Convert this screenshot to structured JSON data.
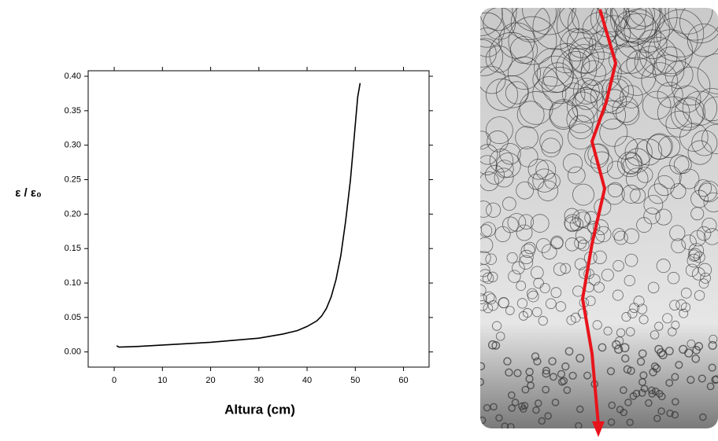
{
  "chart_data": {
    "type": "line",
    "x_label": "Altura (cm)",
    "y_label": "ε / ε₀",
    "x": [
      0.5,
      1,
      5,
      10,
      15,
      20,
      25,
      30,
      35,
      38,
      40,
      42,
      43,
      44,
      45,
      46,
      47,
      48,
      49,
      49.5,
      50,
      50.5,
      51
    ],
    "series": [
      {
        "color": "#000000",
        "values": [
          0.009,
          0.007,
          0.008,
          0.01,
          0.012,
          0.014,
          0.017,
          0.02,
          0.026,
          0.031,
          0.037,
          0.045,
          0.052,
          0.063,
          0.08,
          0.105,
          0.14,
          0.19,
          0.25,
          0.29,
          0.33,
          0.37,
          0.39
        ]
      }
    ],
    "xlim": [
      -5.4,
      65.3
    ],
    "ylim": [
      -0.022,
      0.408
    ],
    "xticks": [
      0,
      10,
      20,
      30,
      40,
      50,
      60
    ],
    "yticks": [
      {
        "value": 0,
        "label": "0.00"
      },
      {
        "value": 0.05,
        "label": "0.05"
      },
      {
        "value": 0.1,
        "label": "0.10"
      },
      {
        "value": 0.15,
        "label": "0.15"
      },
      {
        "value": 0.2,
        "label": "0.20"
      },
      {
        "value": 0.25,
        "label": "0.25"
      },
      {
        "value": 0.3,
        "label": "0.30"
      },
      {
        "value": 0.35,
        "label": "0.35"
      },
      {
        "value": 0.4,
        "label": "0.40"
      }
    ]
  }
}
